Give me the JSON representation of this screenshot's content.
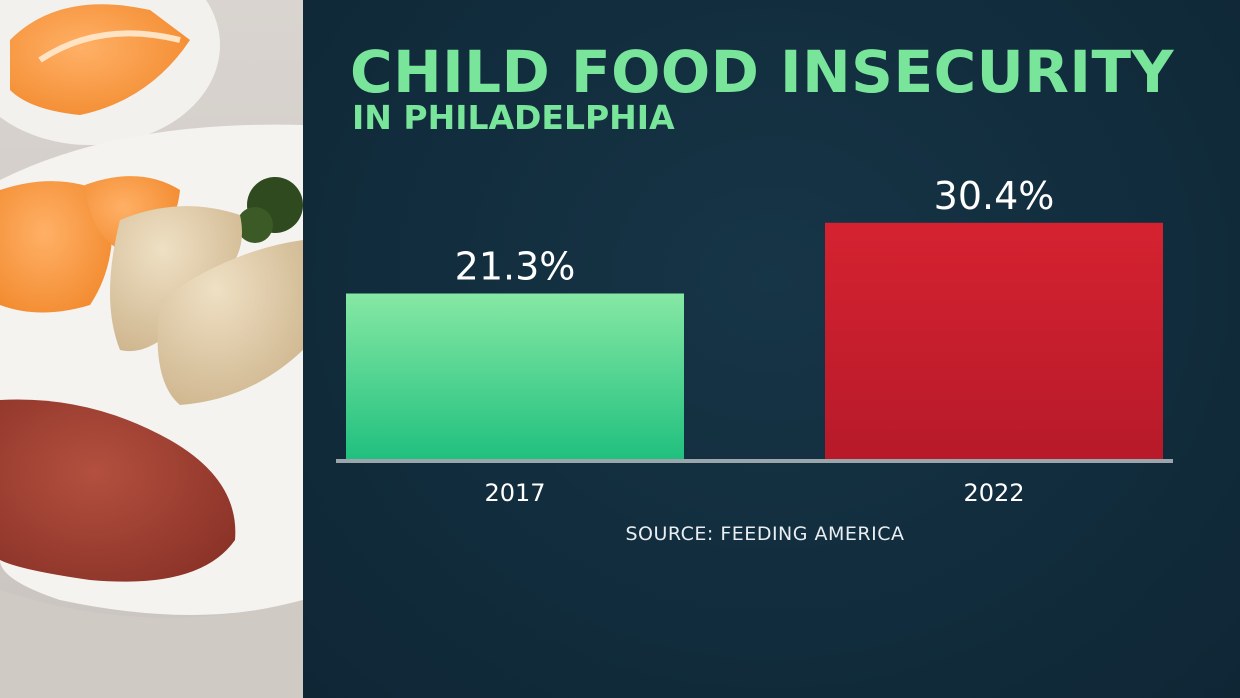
{
  "chart_data": {
    "type": "bar",
    "title": "CHILD FOOD INSECURITY",
    "subtitle": "IN PHILADELPHIA",
    "categories": [
      "2017",
      "2022"
    ],
    "values": [
      21.3,
      30.4
    ],
    "value_labels": [
      "21.3%",
      "30.4%"
    ],
    "bar_colors": [
      "#4fd38e",
      "#c81e2e"
    ],
    "ylim": [
      0,
      40
    ],
    "grid": false,
    "source": "SOURCE: FEEDING AMERICA"
  },
  "colors": {
    "background": "#102a3a",
    "title": "#79e59b",
    "text": "#ffffff",
    "baseline": "#9aa5ac"
  }
}
